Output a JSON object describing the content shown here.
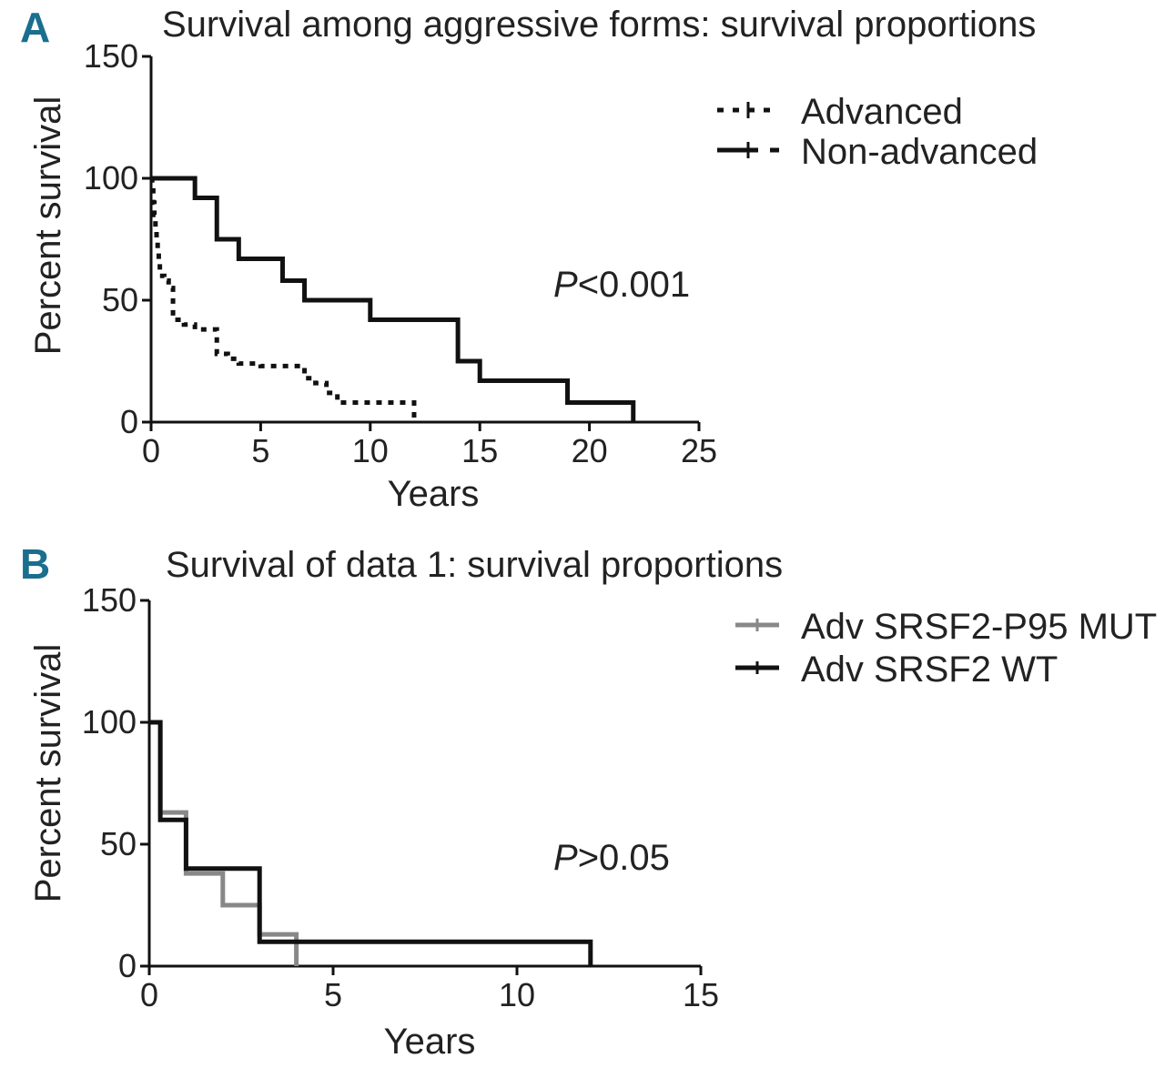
{
  "chart_data": [
    {
      "type": "line",
      "subtype": "kaplan-meier",
      "panel": "A",
      "title": "Survival among aggressive forms: survival proportions",
      "xlabel": "Years",
      "ylabel": "Percent survival",
      "xlim": [
        0,
        25
      ],
      "ylim": [
        0,
        150
      ],
      "xticks": [
        "0",
        "5",
        "10",
        "15",
        "20",
        "25"
      ],
      "yticks": [
        "0",
        "50",
        "100",
        "150"
      ],
      "annotation": {
        "prefix": "P",
        "text": "<0.001"
      },
      "legend_position": "top-right",
      "series": [
        {
          "name": "Advanced",
          "style": "dotted",
          "color": "#111111",
          "steps": [
            [
              0,
              100
            ],
            [
              0.05,
              95
            ],
            [
              0.1,
              90
            ],
            [
              0.15,
              85
            ],
            [
              0.2,
              80
            ],
            [
              0.25,
              75
            ],
            [
              0.3,
              70
            ],
            [
              0.35,
              65
            ],
            [
              0.4,
              60
            ],
            [
              0.6,
              58
            ],
            [
              0.8,
              55
            ],
            [
              1,
              42
            ],
            [
              1.5,
              40
            ],
            [
              2,
              38
            ],
            [
              3,
              28
            ],
            [
              3.5,
              26
            ],
            [
              4,
              24
            ],
            [
              5,
              23
            ],
            [
              6,
              23
            ],
            [
              7,
              18
            ],
            [
              7.5,
              16
            ],
            [
              8,
              12
            ],
            [
              8.5,
              8
            ],
            [
              11.7,
              8
            ],
            [
              12,
              0
            ]
          ]
        },
        {
          "name": "Non-advanced",
          "style": "solid",
          "color": "#111111",
          "steps": [
            [
              0,
              100
            ],
            [
              2,
              92
            ],
            [
              3,
              75
            ],
            [
              4,
              67
            ],
            [
              6,
              58
            ],
            [
              7,
              50
            ],
            [
              10,
              42
            ],
            [
              14,
              25
            ],
            [
              15,
              17
            ],
            [
              19,
              8
            ],
            [
              22,
              0
            ]
          ]
        }
      ]
    },
    {
      "type": "line",
      "subtype": "kaplan-meier",
      "panel": "B",
      "title": "Survival of data 1: survival proportions",
      "xlabel": "Years",
      "ylabel": "Percent survival",
      "xlim": [
        0,
        15
      ],
      "ylim": [
        0,
        150
      ],
      "xticks": [
        "0",
        "5",
        "10",
        "15"
      ],
      "yticks": [
        "0",
        "50",
        "100",
        "150"
      ],
      "annotation": {
        "prefix": "P",
        "text": ">0.05"
      },
      "legend_position": "top-right",
      "series": [
        {
          "name": "Adv SRSF2-P95 MUT",
          "style": "solid",
          "color": "#888888",
          "steps": [
            [
              0,
              100
            ],
            [
              0.3,
              63
            ],
            [
              1,
              38
            ],
            [
              2,
              25
            ],
            [
              3,
              13
            ],
            [
              4,
              0
            ]
          ]
        },
        {
          "name": "Adv SRSF2 WT",
          "style": "solid",
          "color": "#111111",
          "steps": [
            [
              0,
              100
            ],
            [
              0.3,
              60
            ],
            [
              1,
              40
            ],
            [
              3,
              10
            ],
            [
              12,
              0
            ]
          ]
        }
      ]
    }
  ]
}
